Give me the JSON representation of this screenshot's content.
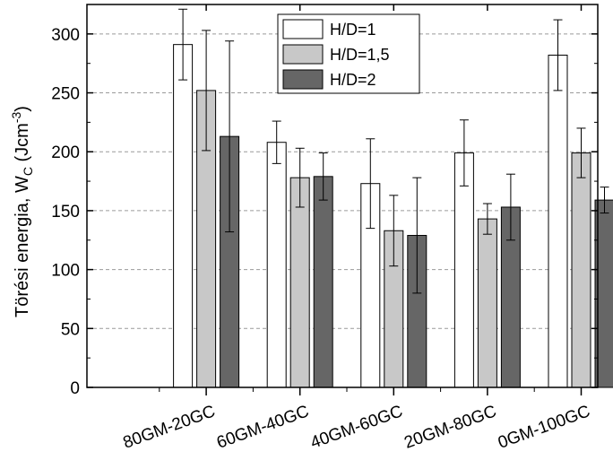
{
  "chart_data": {
    "type": "bar",
    "categories": [
      "80GM-20GC",
      "60GM-40GC",
      "40GM-60GC",
      "20GM-80GC",
      "0GM-100GC"
    ],
    "series": [
      {
        "name": "H/D=1",
        "color": "#ffffff",
        "values": [
          291,
          208,
          173,
          199,
          282
        ],
        "errors": [
          30,
          18,
          38,
          28,
          30
        ]
      },
      {
        "name": "H/D=1,5",
        "color": "#c8c8c8",
        "values": [
          252,
          178,
          133,
          143,
          199
        ],
        "errors": [
          51,
          25,
          30,
          13,
          21
        ]
      },
      {
        "name": "H/D=2",
        "color": "#666666",
        "values": [
          213,
          179,
          129,
          153,
          159
        ],
        "errors": [
          81,
          20,
          49,
          28,
          11
        ]
      }
    ],
    "ylabel_main": "Törési energia, W",
    "ylabel_sub": "C",
    "ylabel_unit_open": " (Jcm",
    "ylabel_unit_exp": "-3",
    "ylabel_unit_close": ")",
    "xlabel": "",
    "ylim": [
      0,
      325
    ],
    "yticks": [
      0,
      50,
      100,
      150,
      200,
      250,
      300
    ],
    "grid": "horizontal dashed",
    "legend_position": "top-center"
  }
}
